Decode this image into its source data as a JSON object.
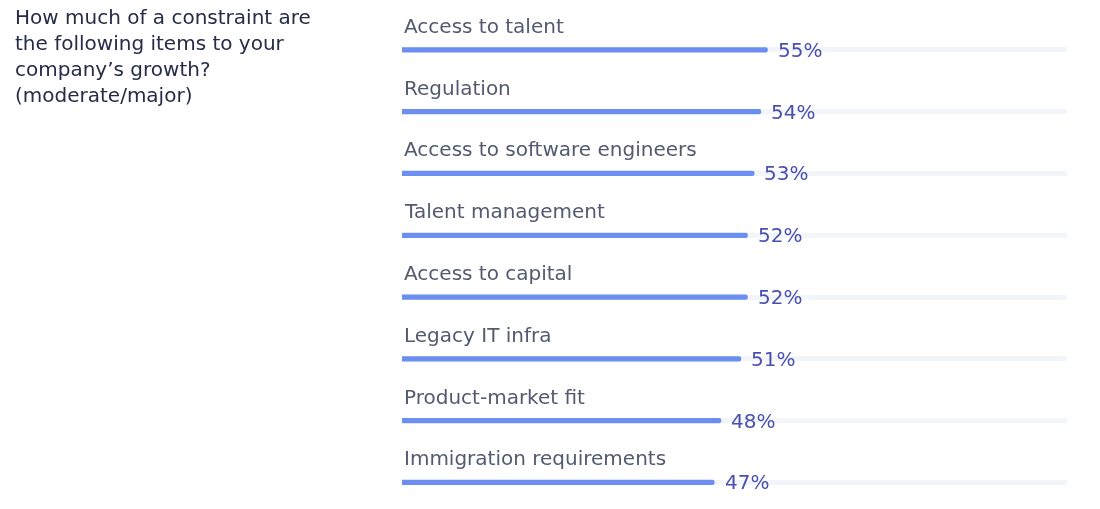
{
  "chart_data": {
    "type": "bar",
    "orientation": "horizontal",
    "grid": "y",
    "title": "How much of a constraint are the following items to your company’s growth? (moderate/major)",
    "categories": [
      "Access to talent",
      "Regulation",
      "Access to software engineers",
      "Talent management",
      "Access to capital",
      "Legacy IT infra",
      "Product-market fit",
      "Immigration requirements"
    ],
    "xlim": [
      0,
      100
    ],
    "series": [
      {
        "color": "#6b8ef0",
        "values": [
          55,
          54,
          53,
          52,
          52,
          51,
          48,
          47
        ],
        "value_labels": [
          "55%",
          "54%",
          "53%",
          "52%",
          "52%",
          "51%",
          "48%",
          "47%"
        ]
      }
    ]
  }
}
